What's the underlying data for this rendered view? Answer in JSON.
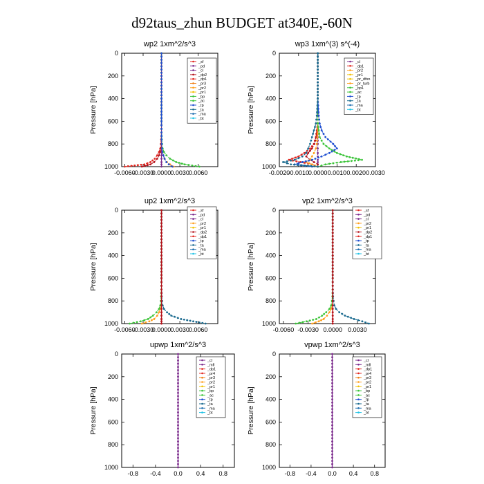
{
  "figure_title": "d92taus_zhun  BUDGET at340E,-60N",
  "chart_data": [
    {
      "type": "line",
      "title": "wp2   1xm^2/s^3",
      "ylabel": "Pressure [hPa]",
      "ylim": [
        1000,
        0
      ],
      "yticks": [
        "0",
        "200",
        "400",
        "600",
        "800",
        "1000"
      ],
      "xlim": [
        -0.0065,
        0.0092
      ],
      "xticks": [
        {
          "v": -0.006,
          "t": "-0.0060"
        },
        {
          "v": -0.003,
          "t": "-0.0030"
        },
        {
          "v": 0,
          "t": "0.0000"
        },
        {
          "v": 0.003,
          "t": "0.0030"
        },
        {
          "v": 0.006,
          "t": "0.0060"
        }
      ],
      "legend": [
        "_sf",
        "_pd",
        "_cl",
        "_dp2",
        "_dp1",
        "_pr3",
        "_pr2",
        "_pr1",
        "_bp",
        "_ac",
        "_tp",
        "_ta",
        "_ma",
        "_bt"
      ],
      "pressure": [
        0,
        200,
        400,
        600,
        700,
        760,
        800,
        840,
        870,
        900,
        930,
        960,
        980,
        1000
      ],
      "series": [
        {
          "name": "_pd",
          "color": "#7b2a8c",
          "marker": "circle",
          "values": [
            0,
            0,
            0,
            0,
            0,
            0,
            0,
            0,
            0,
            0,
            0,
            0,
            0,
            0
          ]
        },
        {
          "name": "_cl",
          "color": "#e2261f",
          "marker": "circle",
          "values": [
            0,
            0,
            0,
            0,
            0,
            -5e-05,
            -0.0001,
            -0.0002,
            -0.0004,
            -0.0007,
            -0.0011,
            -0.0018,
            -0.0028,
            -0.006
          ]
        },
        {
          "name": "_dp2",
          "color": "#b5121b",
          "marker": "circle",
          "values": [
            0,
            0,
            0,
            0,
            0,
            -3e-05,
            -6e-05,
            -0.0001,
            -0.0002,
            -0.0004,
            -0.0007,
            -0.0012,
            -0.0018,
            -0.0032
          ]
        },
        {
          "name": "_pr2",
          "color": "#ff9f1c",
          "marker": "circle",
          "values": [
            0,
            0,
            0,
            0,
            0,
            2e-05,
            4e-05,
            8e-05,
            0.00015,
            0.0003,
            0.0005,
            0.0009,
            0.0014,
            0.002
          ]
        },
        {
          "name": "_bp",
          "color": "#3cc43a",
          "marker": "circle",
          "values": [
            0,
            0,
            0,
            0,
            1e-05,
            5e-05,
            0.0001,
            0.0002,
            0.0004,
            0.0008,
            0.0014,
            0.0024,
            0.0038,
            0.0062
          ]
        },
        {
          "name": "_tp",
          "color": "#1f4fd1",
          "marker": "circle",
          "values": [
            0,
            0,
            0,
            0,
            0,
            2e-05,
            4e-05,
            8e-05,
            0.00015,
            0.0003,
            0.0005,
            0.0008,
            0.0012,
            0.0018
          ]
        }
      ]
    },
    {
      "type": "line",
      "title": "wp3   1xm^(3) s^(-4)",
      "ylabel": "Pressure [hPa]",
      "ylim": [
        1000,
        0
      ],
      "yticks": [
        "0",
        "200",
        "400",
        "600",
        "800",
        "1000"
      ],
      "xlim": [
        -0.002,
        0.003
      ],
      "xticks": [
        {
          "v": -0.002,
          "t": "-0.0020"
        },
        {
          "v": -0.001,
          "t": "-0.0010"
        },
        {
          "v": 0,
          "t": "0.0000"
        },
        {
          "v": 0.001,
          "t": "0.0010"
        },
        {
          "v": 0.002,
          "t": "0.0020"
        },
        {
          "v": 0.003,
          "t": "0.0030"
        }
      ],
      "legend": [
        "_cl",
        "_dp1",
        "_pr2",
        "_pr1",
        "_pr_dfsn",
        "_pr_turb",
        "_bp1",
        "_ac",
        "_tp",
        "_ta",
        "_ma",
        "_bt"
      ],
      "pressure": [
        0,
        200,
        400,
        550,
        620,
        680,
        740,
        800,
        840,
        880,
        910,
        940,
        960,
        980,
        1000
      ],
      "series": [
        {
          "name": "_cl",
          "color": "#7b2a8c",
          "marker": "circle",
          "values": [
            0,
            0,
            0,
            0,
            0,
            0,
            0,
            0,
            0,
            0,
            0,
            0,
            0,
            0,
            0
          ]
        },
        {
          "name": "_dp1",
          "color": "#e2261f",
          "marker": "circle",
          "values": [
            0,
            0,
            0,
            0,
            0,
            -5e-05,
            -0.0001,
            -0.0002,
            -0.0004,
            -0.0007,
            -0.001,
            -0.0015,
            -0.0009,
            -0.0003,
            0
          ]
        },
        {
          "name": "_pr1",
          "color": "#b5121b",
          "marker": "circle",
          "values": [
            0,
            0,
            0,
            0,
            0,
            -3e-05,
            -8e-05,
            -0.00018,
            -0.0003,
            -0.0005,
            -0.0006,
            -0.0004,
            -0.0002,
            0,
            0
          ]
        },
        {
          "name": "_pr2",
          "color": "#ff9f1c",
          "marker": "circle",
          "values": [
            0,
            0,
            0,
            0,
            0,
            0,
            -2e-05,
            -5e-05,
            -0.0001,
            -0.0002,
            -0.0003,
            -0.0004,
            -0.0006,
            -0.0003,
            0
          ]
        },
        {
          "name": "_ac",
          "color": "#3cc43a",
          "marker": "circle",
          "values": [
            0,
            0,
            0,
            0,
            0,
            5e-05,
            0.0001,
            0.0003,
            0.0006,
            0.001,
            0.0015,
            0.0023,
            0.0012,
            0.0004,
            0
          ]
        },
        {
          "name": "_tp",
          "color": "#1f4fd1",
          "marker": "circle",
          "values": [
            0,
            0,
            0,
            5e-05,
            0.0001,
            0.0002,
            0.0004,
            0.0008,
            0.001,
            0.0006,
            0.0002,
            -0.0003,
            -0.0008,
            -0.0012,
            -0.0003
          ]
        },
        {
          "name": "_ma",
          "color": "#1a6a8f",
          "marker": "circle",
          "values": [
            0,
            0,
            0,
            -5e-05,
            -0.0001,
            -0.0002,
            -0.0003,
            -0.0004,
            -0.0005,
            -0.0006,
            -0.0008,
            -0.0012,
            -0.0018,
            -0.0014,
            0
          ]
        }
      ]
    },
    {
      "type": "line",
      "title": "up2   1xm^2/s^3",
      "ylabel": "Pressure [hPa]",
      "ylim": [
        1000,
        0
      ],
      "yticks": [
        "0",
        "200",
        "400",
        "600",
        "800",
        "1000"
      ],
      "xlim": [
        -0.0065,
        0.0092
      ],
      "xticks": [
        {
          "v": -0.006,
          "t": "-0.0060"
        },
        {
          "v": -0.003,
          "t": "-0.0030"
        },
        {
          "v": 0,
          "t": "0.0000"
        },
        {
          "v": 0.003,
          "t": "0.0030"
        },
        {
          "v": 0.006,
          "t": "0.0060"
        }
      ],
      "legend": [
        "_sf",
        "_pd",
        "_cl",
        "_pr2",
        "_pr1",
        "_dp2",
        "_dp1",
        "_tp",
        "_ta",
        "_ma",
        "_bt"
      ],
      "pressure": [
        0,
        200,
        400,
        600,
        700,
        760,
        800,
        840,
        870,
        900,
        930,
        960,
        980,
        1000
      ],
      "series": [
        {
          "name": "_sf",
          "color": "#e2261f",
          "marker": "circle",
          "values": [
            0,
            0,
            0,
            0,
            0,
            0,
            0,
            0,
            0,
            0,
            0,
            0,
            0,
            0
          ]
        },
        {
          "name": "_pr1",
          "color": "#ff9f1c",
          "marker": "circle",
          "values": [
            0,
            0,
            0,
            0,
            0,
            -3e-05,
            -6e-05,
            -0.0001,
            -0.0002,
            -0.0004,
            -0.0007,
            -0.0012,
            -0.002,
            -0.0032
          ]
        },
        {
          "name": "_dp1",
          "color": "#3cc43a",
          "marker": "circle",
          "values": [
            0,
            0,
            0,
            0,
            -1e-05,
            -5e-05,
            -0.0001,
            -0.0002,
            -0.0004,
            -0.0008,
            -0.0014,
            -0.0022,
            -0.0034,
            -0.0052
          ]
        },
        {
          "name": "_ta",
          "color": "#1a6a8f",
          "marker": "circle",
          "values": [
            0,
            0,
            0,
            0,
            1e-05,
            4e-05,
            0.0001,
            0.0002,
            0.0004,
            0.0009,
            0.0016,
            0.0032,
            0.0052,
            0.0072
          ]
        },
        {
          "name": "_pd",
          "color": "#b5121b",
          "marker": "circle",
          "values": [
            0,
            0,
            0,
            0,
            0,
            0,
            0,
            0,
            0,
            0,
            0,
            0,
            0,
            0
          ]
        }
      ]
    },
    {
      "type": "line",
      "title": "vp2   1xm^2/s^3",
      "ylabel": "Pressure [hPa]",
      "ylim": [
        1000,
        0
      ],
      "yticks": [
        "0",
        "200",
        "400",
        "600",
        "800",
        "1000"
      ],
      "xlim": [
        -0.0065,
        0.0052
      ],
      "xticks": [
        {
          "v": -0.006,
          "t": "-0.0060"
        },
        {
          "v": -0.003,
          "t": "-0.0030"
        },
        {
          "v": 0,
          "t": "0.0000"
        },
        {
          "v": 0.003,
          "t": "0.0030"
        }
      ],
      "legend": [
        "_sf",
        "_pd",
        "_cl",
        "_pr2",
        "_pr1",
        "_dp2",
        "_dp1",
        "_tp",
        "_ta",
        "_ma",
        "_bt"
      ],
      "pressure": [
        0,
        200,
        400,
        600,
        700,
        760,
        800,
        840,
        870,
        900,
        930,
        960,
        980,
        1000
      ],
      "series": [
        {
          "name": "_sf",
          "color": "#e2261f",
          "marker": "circle",
          "values": [
            0,
            0,
            0,
            0,
            0,
            0,
            0,
            0,
            0,
            0,
            0,
            0,
            0,
            0
          ]
        },
        {
          "name": "_pr1",
          "color": "#ff9f1c",
          "marker": "circle",
          "values": [
            0,
            0,
            0,
            0,
            0,
            -3e-05,
            -6e-05,
            -0.0001,
            -0.0002,
            -0.0004,
            -0.0007,
            -0.0011,
            -0.0017,
            -0.0025
          ]
        },
        {
          "name": "_dp1",
          "color": "#3cc43a",
          "marker": "circle",
          "values": [
            0,
            0,
            0,
            0,
            -1e-05,
            -4e-05,
            -0.0001,
            -0.0002,
            -0.0004,
            -0.0008,
            -0.0013,
            -0.002,
            -0.0032,
            -0.0045
          ]
        },
        {
          "name": "_ta",
          "color": "#1a6a8f",
          "marker": "circle",
          "values": [
            0,
            0,
            0,
            0,
            1e-05,
            4e-05,
            0.0001,
            0.0002,
            0.0004,
            0.0008,
            0.0015,
            0.0026,
            0.0036,
            0.0044
          ]
        },
        {
          "name": "_pd",
          "color": "#b5121b",
          "marker": "circle",
          "values": [
            0,
            0,
            0,
            0,
            0,
            0,
            0,
            0,
            0,
            0,
            0,
            0,
            0,
            0
          ]
        }
      ]
    },
    {
      "type": "line",
      "title": "upwp   1xm^2/s^3",
      "ylabel": "Pressure [hPa]",
      "ylim": [
        1000,
        0
      ],
      "yticks": [
        "0",
        "200",
        "400",
        "600",
        "800",
        "1000"
      ],
      "xlim": [
        -1,
        1
      ],
      "xticks": [
        {
          "v": -0.8,
          "t": "-0.8"
        },
        {
          "v": -0.4,
          "t": "-0.4"
        },
        {
          "v": 0,
          "t": "0.0"
        },
        {
          "v": 0.4,
          "t": "0.4"
        },
        {
          "v": 0.8,
          "t": "0.8"
        }
      ],
      "legend": [
        "_cl",
        "_mfl",
        "_dp1",
        "_pr4",
        "_pr3",
        "_pr2",
        "_pr1",
        "_bp",
        "_ac",
        "_tp",
        "_ta",
        "_ma",
        "_bt"
      ],
      "pressure": [
        0,
        200,
        400,
        600,
        800,
        1000
      ],
      "series": [
        {
          "name": "_cl",
          "color": "#7b2a8c",
          "marker": "circle",
          "values": [
            0,
            0,
            0,
            0,
            0,
            0
          ]
        }
      ]
    },
    {
      "type": "line",
      "title": "vpwp   1xm^2/s^3",
      "ylabel": "Pressure [hPa]",
      "ylim": [
        1000,
        0
      ],
      "yticks": [
        "0",
        "200",
        "400",
        "600",
        "800",
        "1000"
      ],
      "xlim": [
        -1,
        1
      ],
      "xticks": [
        {
          "v": -0.8,
          "t": "-0.8"
        },
        {
          "v": -0.4,
          "t": "-0.4"
        },
        {
          "v": 0,
          "t": "0.0"
        },
        {
          "v": 0.4,
          "t": "0.4"
        },
        {
          "v": 0.8,
          "t": "0.8"
        }
      ],
      "legend": [
        "_cl",
        "_mfl",
        "_dp1",
        "_pr4",
        "_pr3",
        "_pr2",
        "_pr1",
        "_bp",
        "_ac",
        "_tp",
        "_ta",
        "_ma",
        "_bt"
      ],
      "pressure": [
        0,
        200,
        400,
        600,
        800,
        1000
      ],
      "series": [
        {
          "name": "_cl",
          "color": "#7b2a8c",
          "marker": "circle",
          "values": [
            0,
            0,
            0,
            0,
            0,
            0
          ]
        }
      ]
    }
  ],
  "legend_colors": {
    "_sf": "#e2261f",
    "_pd": "#7b2a8c",
    "_cl": "#7b2a8c",
    "_dp2": "#b5121b",
    "_dp1": "#e2261f",
    "_pr4": "#e2261f",
    "_pr3": "#f07f13",
    "_pr2": "#ff9f1c",
    "_pr1": "#f2c100",
    "_pr_dfsn": "#f2c100",
    "_pr_turb": "#ff9f1c",
    "_bp1": "#3cc43a",
    "_bp": "#3cc43a",
    "_ac": "#3cc43a",
    "_tp": "#1f4fd1",
    "_ta": "#1a6a8f",
    "_ma": "#1f6fb0",
    "_bt": "#22c3e6",
    "_mfl": "#7b2a8c"
  }
}
